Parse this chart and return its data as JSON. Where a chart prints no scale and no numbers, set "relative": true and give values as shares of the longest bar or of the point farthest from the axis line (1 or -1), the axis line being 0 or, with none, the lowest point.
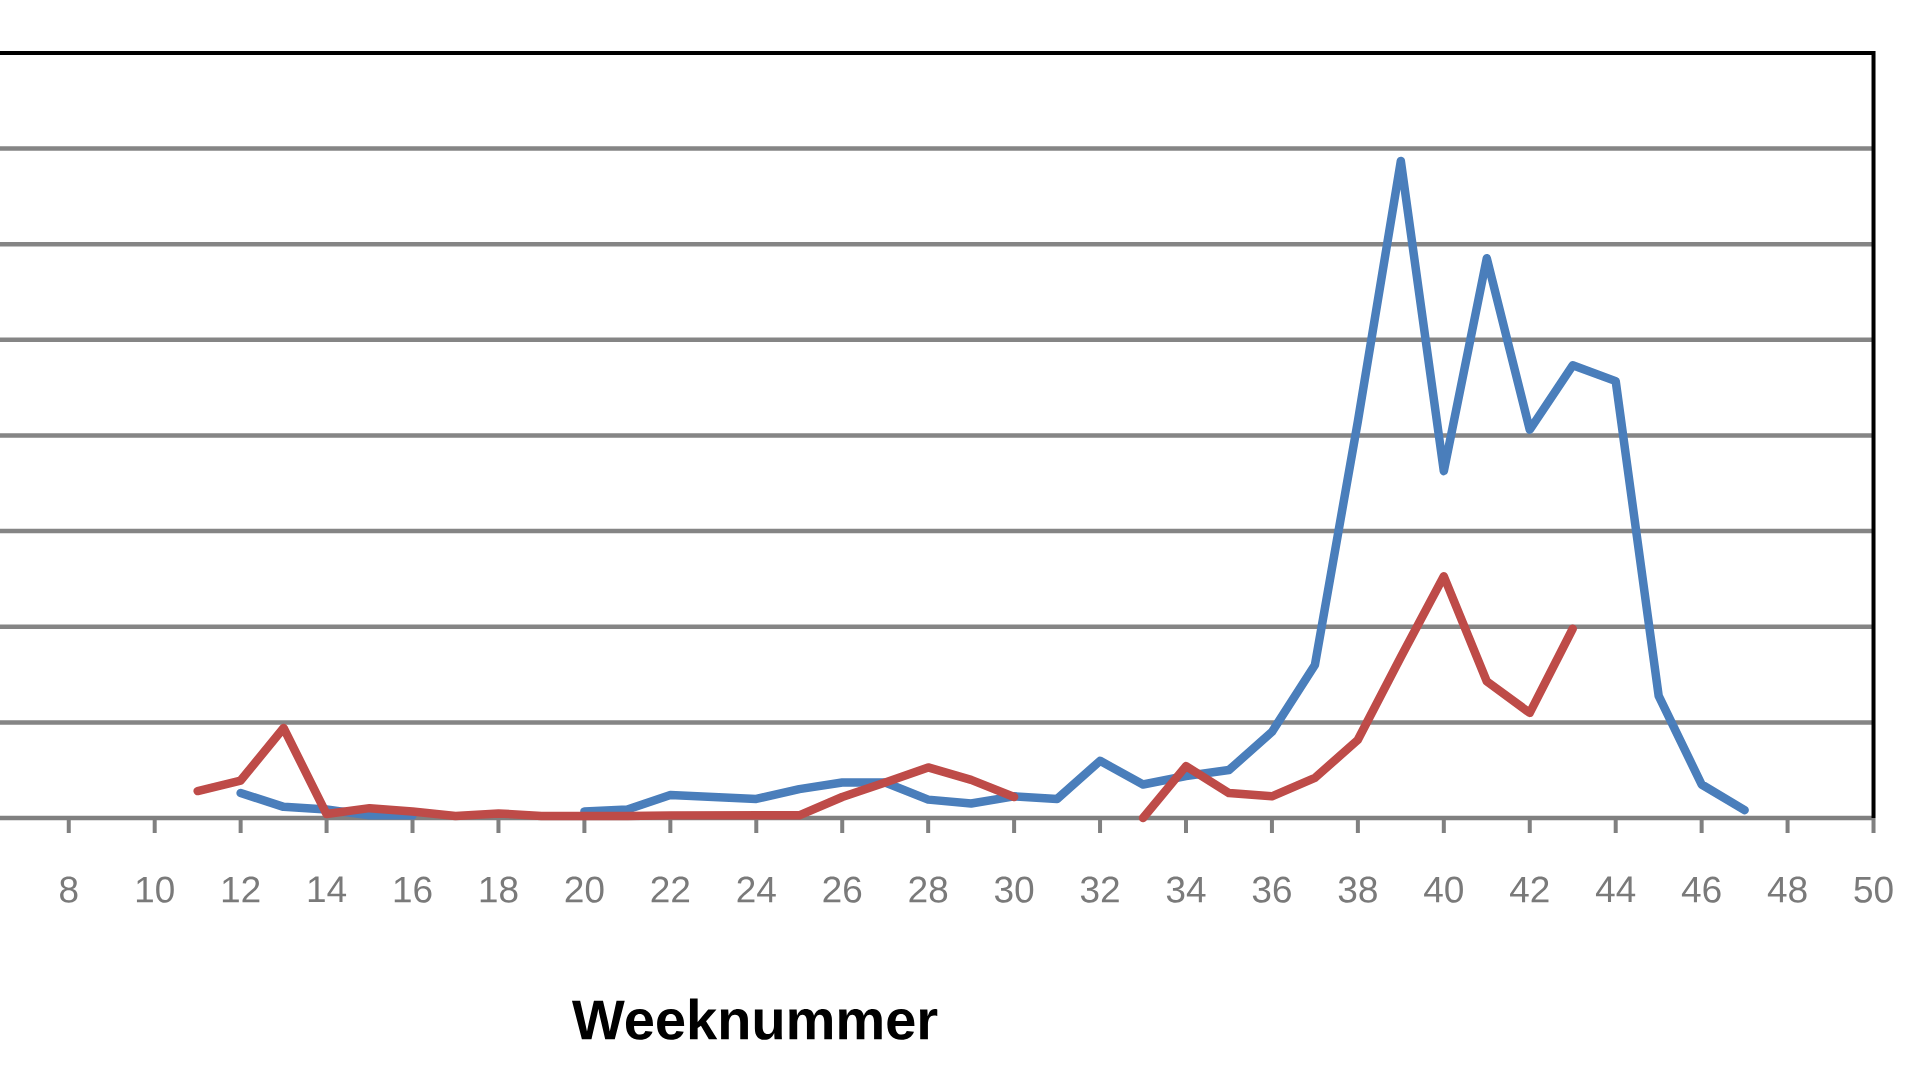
{
  "chart_data": {
    "type": "line",
    "xlabel": "Weeknummer",
    "relative": true,
    "grid": "y",
    "xlim": [
      6.4,
      50
    ],
    "xticks": [
      8,
      10,
      12,
      14,
      16,
      18,
      20,
      22,
      24,
      26,
      28,
      30,
      32,
      34,
      36,
      38,
      40,
      42,
      44,
      46,
      48,
      50
    ],
    "series": [
      {
        "color": "#4a7ebb",
        "x": [
          12,
          13,
          14,
          15,
          16,
          17,
          18,
          19,
          20,
          21,
          22,
          23,
          24,
          25,
          26,
          27,
          28,
          29,
          30,
          31,
          32,
          33,
          34,
          35,
          36,
          37,
          38,
          39,
          40,
          41,
          42,
          43,
          44,
          45,
          46,
          47
        ],
        "values": [
          0.038,
          0.017,
          0.013,
          0.004,
          0.004,
          null,
          null,
          null,
          0.01,
          0.013,
          0.035,
          0.032,
          0.029,
          0.044,
          0.054,
          0.054,
          0.028,
          0.022,
          0.033,
          0.029,
          0.087,
          0.051,
          0.064,
          0.073,
          0.131,
          0.233,
          0.604,
          1,
          0.528,
          0.852,
          0.591,
          0.689,
          0.665,
          0.186,
          0.051,
          0.012
        ]
      },
      {
        "color": "#be4b48",
        "x": [
          11,
          12,
          13,
          14,
          15,
          16,
          17,
          18,
          19,
          20,
          21,
          22,
          23,
          24,
          25,
          26,
          27,
          28,
          29,
          30,
          31,
          32,
          33,
          34,
          35,
          36,
          37,
          38,
          39,
          40,
          41,
          42,
          43
        ],
        "values": [
          0.041,
          0.057,
          0.137,
          0.006,
          0.015,
          0.01,
          0.003,
          0.007,
          0.003,
          0.003,
          0.003,
          0.004,
          0.004,
          0.004,
          0.004,
          0.032,
          0.054,
          0.077,
          0.058,
          0.032,
          null,
          null,
          0,
          0.079,
          0.038,
          0.033,
          0.061,
          0.119,
          0.245,
          0.368,
          0.208,
          0.16,
          0.288
        ]
      }
    ]
  }
}
